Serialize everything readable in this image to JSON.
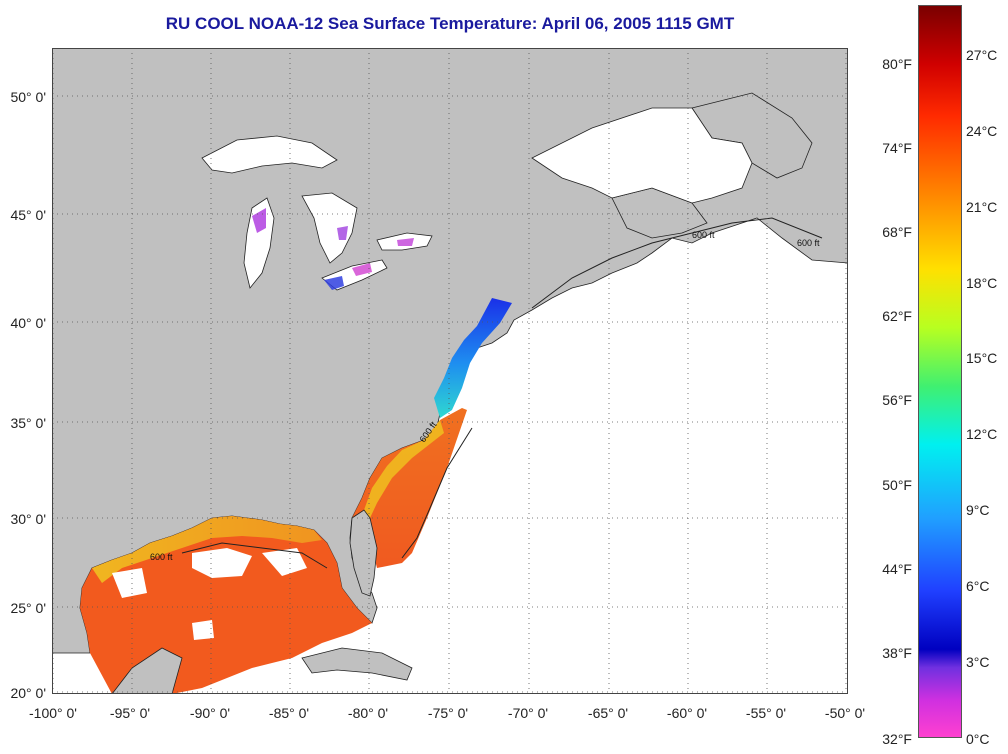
{
  "title": "RU COOL  NOAA-12  Sea Surface Temperature:  April 06, 2005 1115 GMT",
  "lat_labels": [
    "50° 0'",
    "45° 0'",
    "40° 0'",
    "35° 0'",
    "30° 0'",
    "25° 0'",
    "20° 0'"
  ],
  "lon_labels": [
    "-100° 0'",
    "-95° 0'",
    "-90° 0'",
    "-85° 0'",
    "-80° 0'",
    "-75° 0'",
    "-70° 0'",
    "-65° 0'",
    "-60° 0'",
    "-55° 0'",
    "-50° 0'"
  ],
  "isobath_label": "600 ft",
  "colorbar": {
    "fahrenheit": [
      "80°F",
      "74°F",
      "68°F",
      "62°F",
      "56°F",
      "50°F",
      "44°F",
      "38°F",
      "32°F"
    ],
    "celsius": [
      "27°C",
      "24°C",
      "21°C",
      "18°C",
      "15°C",
      "12°C",
      "9°C",
      "6°C",
      "3°C",
      "0°C"
    ]
  },
  "colors": {
    "title": "#1a1a9e",
    "land": "#c0c0c0",
    "ocean_nodata": "#ffffff",
    "gulf_sst": "#f25a1e",
    "shelf_cold": "#1e3cf0"
  }
}
